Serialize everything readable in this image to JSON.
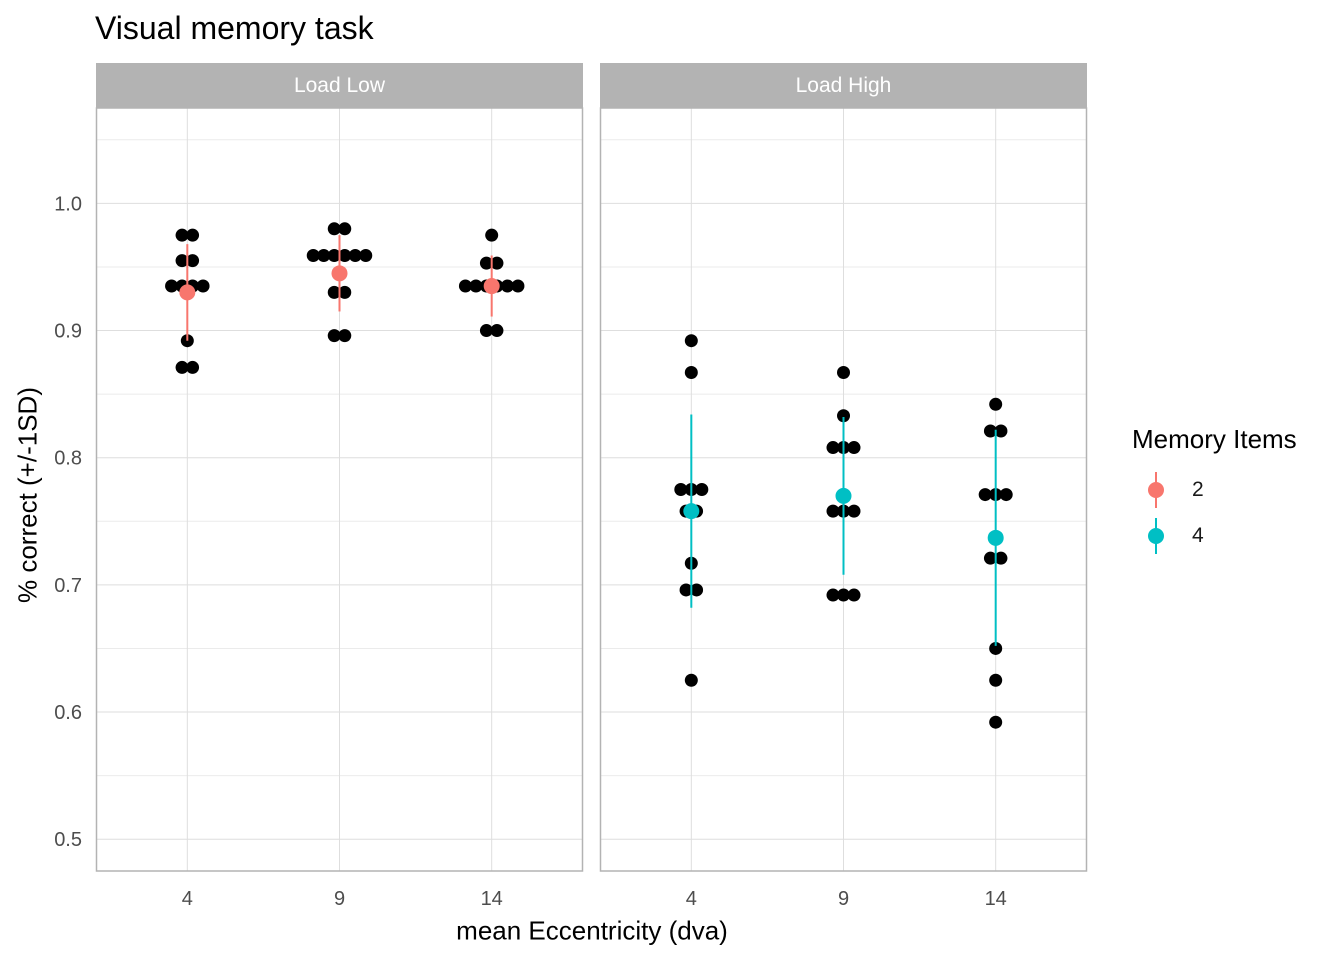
{
  "chart_data": {
    "type": "scatter",
    "title": "Visual memory task",
    "xlabel": "mean Eccentricity (dva)",
    "ylabel": "% correct (+/-1SD)",
    "x_ticks": [
      "4",
      "9",
      "14"
    ],
    "y_ticks": [
      "0.5",
      "0.6",
      "0.7",
      "0.8",
      "0.9",
      "1.0"
    ],
    "ylim": [
      0.475,
      1.075
    ],
    "grid": true,
    "legend": {
      "title": "Memory Items",
      "position": "right",
      "entries": [
        {
          "label": "2",
          "color": "#F8766D"
        },
        {
          "label": "4",
          "color": "#00BFC4"
        }
      ]
    },
    "panels": [
      {
        "label": "Load Low",
        "groups": [
          {
            "x": "4",
            "memory_items": "2",
            "mean": 0.93,
            "sd_low": 0.892,
            "sd_high": 0.968,
            "points": [
              0.975,
              0.975,
              0.955,
              0.955,
              0.935,
              0.935,
              0.935,
              0.935,
              0.892,
              0.871,
              0.871
            ]
          },
          {
            "x": "9",
            "memory_items": "2",
            "mean": 0.945,
            "sd_low": 0.915,
            "sd_high": 0.975,
            "points": [
              0.98,
              0.98,
              0.959,
              0.959,
              0.959,
              0.959,
              0.959,
              0.959,
              0.93,
              0.93,
              0.896,
              0.896
            ]
          },
          {
            "x": "14",
            "memory_items": "2",
            "mean": 0.935,
            "sd_low": 0.911,
            "sd_high": 0.959,
            "points": [
              0.975,
              0.953,
              0.953,
              0.935,
              0.935,
              0.935,
              0.935,
              0.935,
              0.935,
              0.9,
              0.9
            ]
          }
        ]
      },
      {
        "label": "Load High",
        "groups": [
          {
            "x": "4",
            "memory_items": "4",
            "mean": 0.758,
            "sd_low": 0.682,
            "sd_high": 0.834,
            "points": [
              0.892,
              0.867,
              0.775,
              0.775,
              0.775,
              0.758,
              0.758,
              0.717,
              0.696,
              0.696,
              0.625
            ]
          },
          {
            "x": "9",
            "memory_items": "4",
            "mean": 0.77,
            "sd_low": 0.708,
            "sd_high": 0.832,
            "points": [
              0.867,
              0.833,
              0.808,
              0.808,
              0.808,
              0.758,
              0.758,
              0.758,
              0.692,
              0.692,
              0.692
            ]
          },
          {
            "x": "14",
            "memory_items": "4",
            "mean": 0.737,
            "sd_low": 0.652,
            "sd_high": 0.822,
            "points": [
              0.842,
              0.821,
              0.821,
              0.771,
              0.771,
              0.771,
              0.721,
              0.721,
              0.65,
              0.625,
              0.592
            ]
          }
        ]
      }
    ]
  }
}
